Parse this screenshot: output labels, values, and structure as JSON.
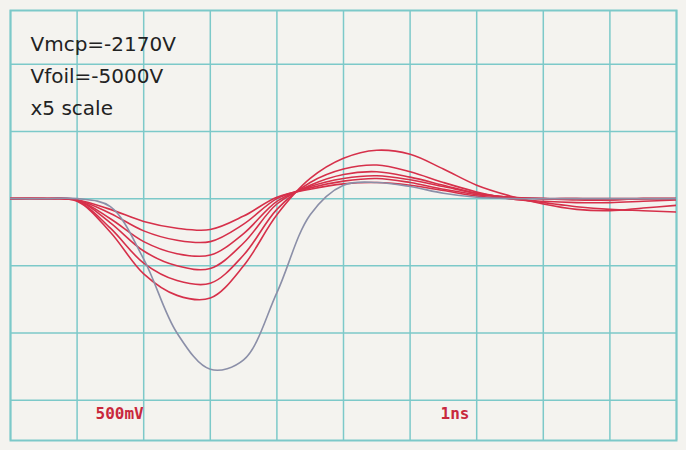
{
  "chart_data": {
    "type": "line",
    "annotations": [
      "Vmcp=-2170V",
      "Vfoil=-5000V",
      "x5 scale"
    ],
    "ylabel": "500mV",
    "xlabel": "1ns",
    "x": [
      0,
      0.5,
      1,
      1.5,
      2,
      2.5,
      3,
      3.5,
      4,
      4.5,
      5,
      5.5,
      6,
      6.5,
      7,
      7.5,
      8,
      8.5,
      9,
      9.5,
      10
    ],
    "series": [
      {
        "color": "#d6304a",
        "values": [
          0,
          0,
          -20,
          -250,
          -560,
          -720,
          -740,
          -500,
          -120,
          150,
          300,
          360,
          330,
          220,
          100,
          20,
          -40,
          -80,
          -90,
          -70,
          -50
        ]
      },
      {
        "color": "#d6304a",
        "values": [
          0,
          0,
          -15,
          -220,
          -480,
          -610,
          -630,
          -420,
          -80,
          120,
          220,
          250,
          200,
          120,
          50,
          0,
          -20,
          -30,
          -30,
          -20,
          -10
        ]
      },
      {
        "color": "#d6304a",
        "values": [
          0,
          0,
          -10,
          -180,
          -390,
          -500,
          -520,
          -330,
          -40,
          100,
          180,
          200,
          160,
          100,
          40,
          10,
          0,
          -10,
          -10,
          0,
          0
        ]
      },
      {
        "color": "#d6304a",
        "values": [
          0,
          0,
          -10,
          -150,
          -320,
          -410,
          -420,
          -260,
          -20,
          90,
          150,
          170,
          140,
          90,
          40,
          10,
          0,
          0,
          -10,
          0,
          0
        ]
      },
      {
        "color": "#d6304a",
        "values": [
          0,
          0,
          -10,
          -110,
          -240,
          -310,
          -320,
          -190,
          0,
          80,
          130,
          150,
          120,
          70,
          30,
          10,
          0,
          0,
          0,
          0,
          0
        ]
      },
      {
        "color": "#d6304a",
        "values": [
          0,
          0,
          -10,
          -80,
          -170,
          -220,
          -230,
          -130,
          10,
          70,
          110,
          120,
          100,
          60,
          20,
          0,
          -30,
          -60,
          -80,
          -90,
          -100
        ]
      },
      {
        "color": "#8b8fa8",
        "values": [
          0,
          0,
          0,
          -60,
          -450,
          -1000,
          -1270,
          -1200,
          -700,
          -120,
          100,
          120,
          90,
          40,
          10,
          0,
          0,
          0,
          0,
          0,
          0
        ]
      }
    ],
    "xlim": [
      0,
      10
    ],
    "xticks": [
      0,
      1,
      2,
      3,
      4,
      5,
      6,
      7,
      8,
      9,
      10
    ],
    "ylim": [
      -1800,
      1400
    ],
    "yticks": [
      -1500,
      -1000,
      -500,
      0,
      500,
      1000
    ],
    "grid": true,
    "tick_labels": false
  }
}
